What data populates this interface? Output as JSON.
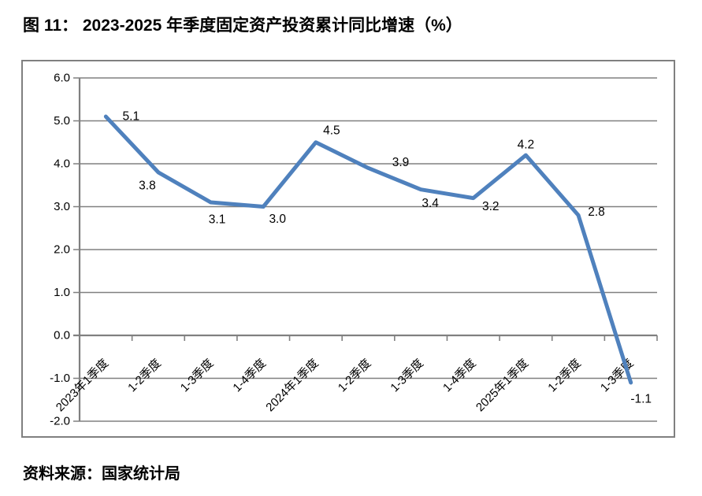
{
  "figure": {
    "title": "图 11： 2023-2025 年季度固定资产投资累计同比增速（%）",
    "source": "资料来源：国家统计局"
  },
  "colors": {
    "line": "#4F81BD",
    "grid": "#808080",
    "axis": "#7a7a7a",
    "frame_border": "#808080",
    "text": "#000000",
    "background": "#FFFFFF"
  },
  "chart_data": {
    "type": "line",
    "title": "2023-2025 年季度固定资产投资累计同比增速（%）",
    "categories": [
      "2023年1季度",
      "1-2季度",
      "1-3季度",
      "1-4季度",
      "2024年1季度",
      "1-2季度",
      "1-3季度",
      "1-4季度",
      "2025年1季度",
      "1-2季度",
      "1-3季度"
    ],
    "values": [
      5.1,
      3.8,
      3.1,
      3.0,
      4.5,
      3.9,
      3.4,
      3.2,
      4.2,
      2.8,
      -1.1
    ],
    "data_labels": [
      "5.1",
      "3.8",
      "3.1",
      "3.0",
      "4.5",
      "3.9",
      "3.4",
      "3.2",
      "4.2",
      "2.8",
      "-1.1"
    ],
    "xlabel": "",
    "ylabel": "",
    "ylim": [
      -2.0,
      6.0
    ],
    "ytick_step": 1.0,
    "ytick_labels": [
      "6.0",
      "5.0",
      "4.0",
      "3.0",
      "2.0",
      "1.0",
      "0.0",
      "-1.0",
      "-2.0"
    ],
    "grid": true,
    "legend": false,
    "x_label_rotation": -45,
    "marker": "none"
  }
}
